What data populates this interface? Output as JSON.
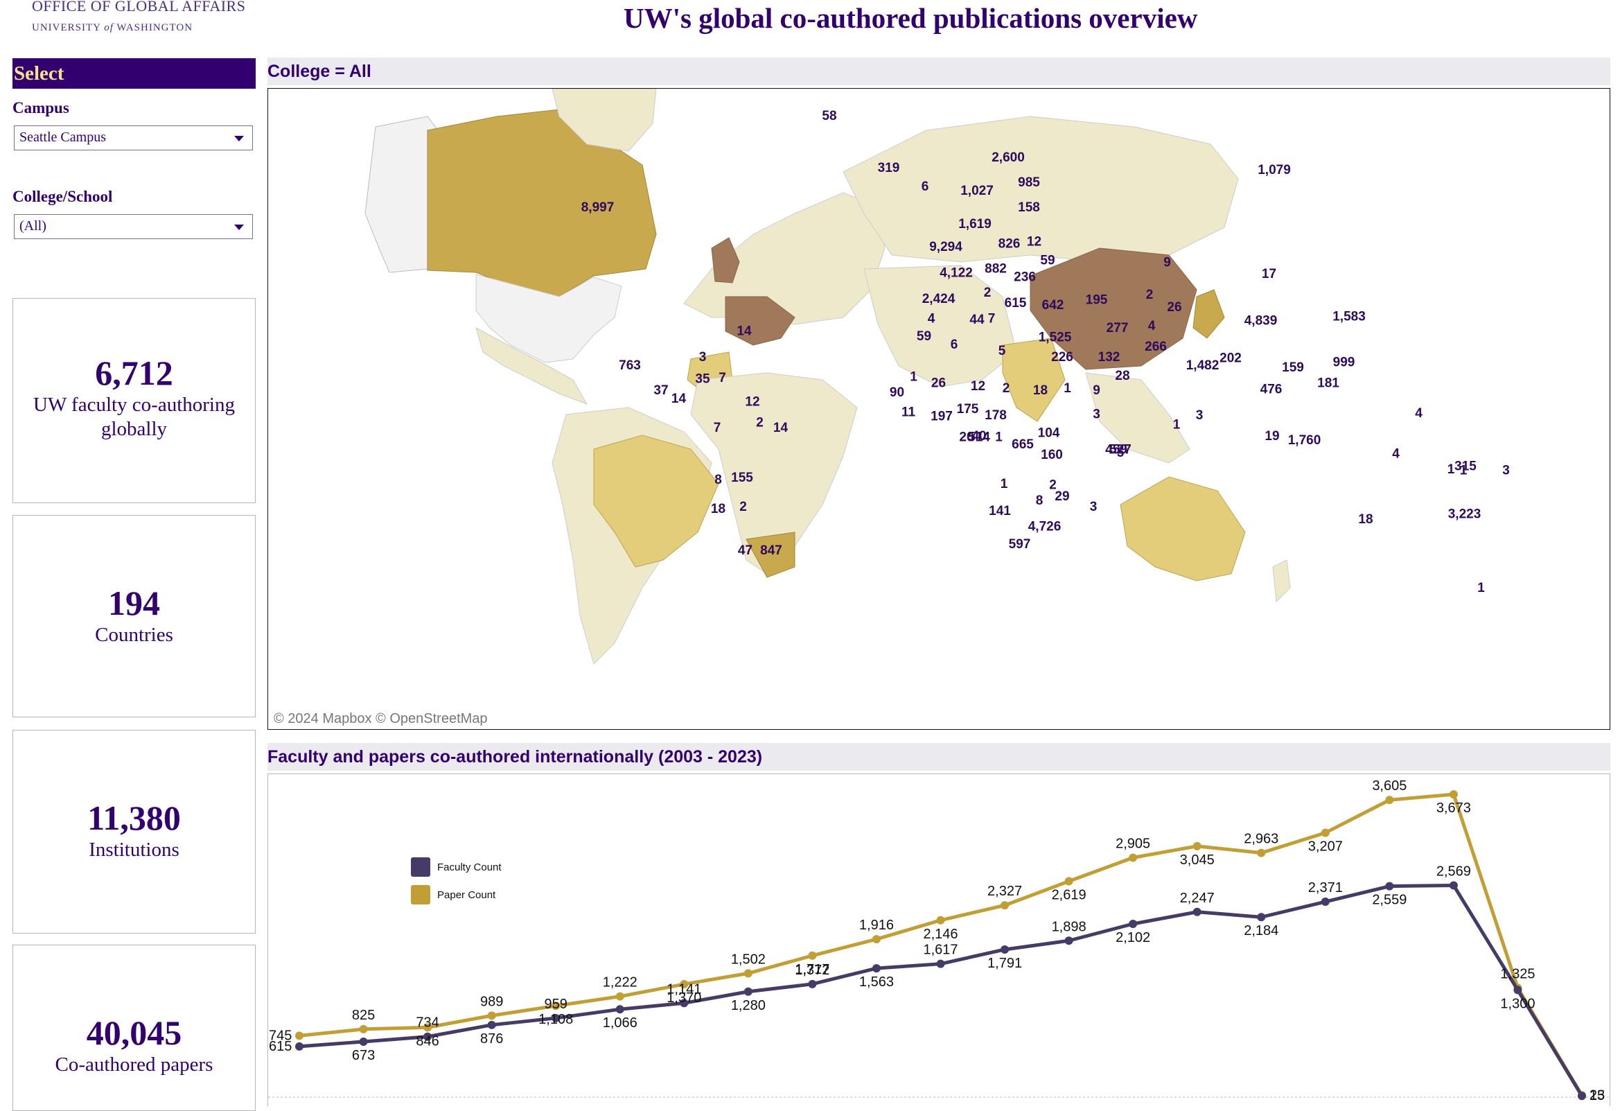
{
  "header": {
    "logo_line1": "OFFICE OF GLOBAL AFFAIRS",
    "logo_line2_a": "UNIVERSITY",
    "logo_line2_b": "of",
    "logo_line2_c": "WASHINGTON",
    "title": "UW's global co-authored publications overview"
  },
  "sidebar": {
    "select_header": "Select",
    "campus_label": "Campus",
    "campus_value": "Seattle Campus",
    "college_label": "College/School",
    "college_value": "(All)",
    "kpis": [
      {
        "value": "6,712",
        "label": "UW faculty co-authoring globally"
      },
      {
        "value": "194",
        "label": "Countries"
      },
      {
        "value": "11,380",
        "label": "Institutions"
      },
      {
        "value": "40,045",
        "label": "Co-authored papers"
      }
    ]
  },
  "map": {
    "section_title": "College = All",
    "credit": "© 2024 Mapbox  © OpenStreetMap",
    "labels": [
      "58",
      "319",
      "6",
      "2,600",
      "985",
      "1,027",
      "158",
      "1,079",
      "8,997",
      "1,619",
      "9,294",
      "826",
      "12",
      "4,122",
      "882",
      "59",
      "236",
      "9",
      "17",
      "2,424",
      "2",
      "615",
      "642",
      "195",
      "2",
      "26",
      "4,839",
      "1,583",
      "4",
      "44",
      "7",
      "277",
      "4",
      "14",
      "59",
      "6",
      "5",
      "1,525",
      "226",
      "132",
      "266",
      "1,482",
      "202",
      "159",
      "999",
      "763",
      "3",
      "35",
      "7",
      "37",
      "14",
      "12",
      "90",
      "1",
      "26",
      "12",
      "2",
      "18",
      "1",
      "9",
      "28",
      "476",
      "181",
      "1",
      "11",
      "197",
      "175",
      "178",
      "40",
      "3",
      "3",
      "459",
      "7",
      "2",
      "14",
      "20",
      "514",
      "1",
      "665",
      "104",
      "5",
      "19",
      "1,760",
      "4",
      "4",
      "1",
      "315",
      "8",
      "155",
      "160",
      "2",
      "1",
      "527",
      "18",
      "2",
      "29",
      "141",
      "8",
      "3",
      "4,726",
      "18",
      "1",
      "3",
      "3,223",
      "597",
      "47",
      "847",
      "1"
    ],
    "colors": {
      "low": "#efe9cc",
      "mid": "#e3cd7a",
      "high": "#c9a94e",
      "top": "#a0785a",
      "none": "#f2f2f2"
    }
  },
  "chart": {
    "section_title": "Faculty and papers co-authored internationally (2003 - 2023)",
    "legend": [
      {
        "name": "Faculty Count",
        "color": "#463a67"
      },
      {
        "name": "Paper Count",
        "color": "#c29f34"
      }
    ]
  },
  "chart_data": {
    "type": "line",
    "x": [
      2003,
      2004,
      2005,
      2006,
      2007,
      2008,
      2009,
      2010,
      2011,
      2012,
      2013,
      2014,
      2015,
      2016,
      2017,
      2018,
      2019,
      2020,
      2021,
      2022,
      2023
    ],
    "series": [
      {
        "name": "Faculty Count",
        "color": "#463a67",
        "values": [
          615,
          673,
          734,
          876,
          959,
          1066,
          1141,
          1280,
          1372,
          1563,
          1617,
          1791,
          1898,
          2102,
          2247,
          2184,
          2371,
          2559,
          2569,
          1300,
          15
        ]
      },
      {
        "name": "Paper Count",
        "color": "#c29f34",
        "values": [
          745,
          825,
          846,
          989,
          1108,
          1222,
          1370,
          1502,
          1717,
          1916,
          2146,
          2327,
          2619,
          2905,
          3045,
          2963,
          3207,
          3605,
          3673,
          1325,
          23
        ]
      }
    ],
    "value_labels": {
      "faculty": [
        "615",
        "673",
        "734",
        "876",
        "959",
        "1,066",
        "1,141",
        "1,280",
        "1,372",
        "1,563",
        "1,617",
        "1,791",
        "1,898",
        "2,102",
        "2,247",
        "2,184",
        "2,371",
        "2,559",
        "2,569",
        "1,300",
        "15"
      ],
      "paper": [
        "745",
        "825",
        "846",
        "989",
        "1,108",
        "1,222",
        "1,370",
        "1,502",
        "1,717",
        "1,916",
        "2,146",
        "2,327",
        "2,619",
        "2,905",
        "3,045",
        "2,963",
        "3,207",
        "3,605",
        "3,673",
        "1,325",
        "23"
      ]
    },
    "ylim": [
      0,
      3750
    ],
    "legend_position": "top-left"
  }
}
